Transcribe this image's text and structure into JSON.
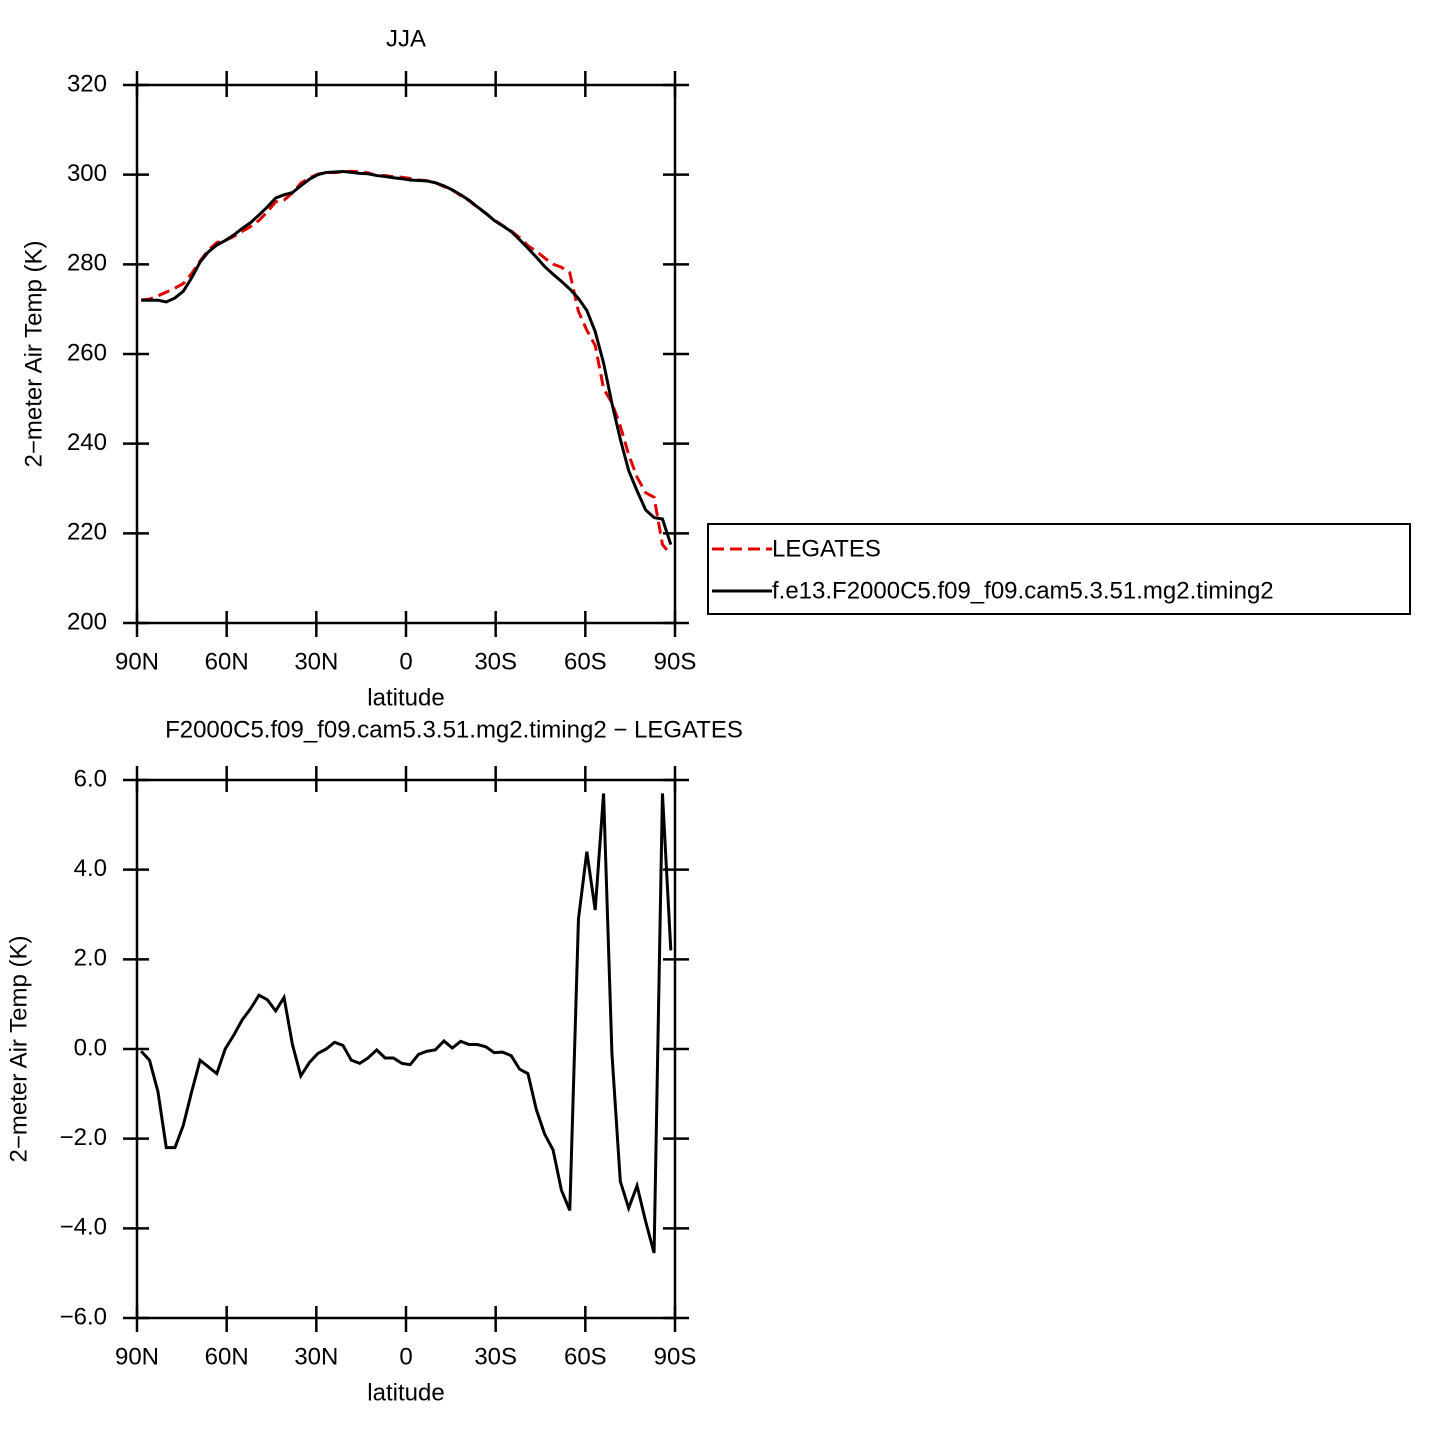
{
  "chart_data": [
    {
      "type": "line",
      "title": "JJA",
      "xlabel": "latitude",
      "ylabel": "2−meter Air Temp (K)",
      "x": [
        88.6,
        85.8,
        83.0,
        80.2,
        77.3,
        74.5,
        71.7,
        68.9,
        66.1,
        63.3,
        60.5,
        57.7,
        54.8,
        52.0,
        49.2,
        46.4,
        43.6,
        40.8,
        38.0,
        35.2,
        32.3,
        29.5,
        26.7,
        23.9,
        21.1,
        18.3,
        15.5,
        12.7,
        9.8,
        7.0,
        4.2,
        1.4,
        -1.4,
        -4.2,
        -7.0,
        -9.8,
        -12.7,
        -15.5,
        -18.3,
        -21.1,
        -23.9,
        -26.7,
        -29.5,
        -32.3,
        -35.2,
        -38.0,
        -40.8,
        -43.6,
        -46.4,
        -49.2,
        -52.0,
        -54.8,
        -57.7,
        -60.5,
        -63.3,
        -66.1,
        -68.9,
        -71.7,
        -74.5,
        -77.3,
        -80.2,
        -83.0,
        -85.8,
        -88.6
      ],
      "series": [
        {
          "name": "LEGATES",
          "color": "#e00000",
          "linestyle": "dashed",
          "values": [
            272.05,
            272.25,
            272.95,
            273.8,
            274.7,
            275.7,
            277.95,
            280.75,
            283.2,
            284.85,
            285.3,
            286.2,
            287.35,
            288.4,
            289.8,
            291.7,
            293.95,
            294.35,
            295.9,
            298.1,
            299.3,
            300.1,
            300.5,
            300.45,
            300.62,
            300.75,
            300.62,
            300.4,
            299.82,
            299.8,
            299.5,
            299.42,
            299.15,
            298.82,
            298.65,
            298.22,
            297.32,
            296.58,
            295.33,
            294.2,
            292.7,
            291.35,
            289.88,
            288.67,
            287.45,
            285.95,
            284.15,
            282.95,
            281.4,
            280.05,
            279.35,
            278.1,
            269.5,
            265.3,
            261.9,
            252.3,
            249.1,
            243.95,
            237.55,
            232.55,
            229.05,
            228.05,
            217.5,
            215.3
          ]
        },
        {
          "name": "f.e13.F2000C5.f09_f09.cam5.3.51.mg2.timing2",
          "color": "#000000",
          "linestyle": "solid",
          "values": [
            272.0,
            272.0,
            272.0,
            271.6,
            272.5,
            274.0,
            277.0,
            280.5,
            282.8,
            284.3,
            285.3,
            286.5,
            288.0,
            289.3,
            291.0,
            292.8,
            294.8,
            295.5,
            296.0,
            297.5,
            299.0,
            300.0,
            300.5,
            300.6,
            300.7,
            300.5,
            300.3,
            300.2,
            299.8,
            299.6,
            299.3,
            299.1,
            298.8,
            298.7,
            298.6,
            298.2,
            297.5,
            296.6,
            295.5,
            294.3,
            292.8,
            291.4,
            289.8,
            288.6,
            287.3,
            285.5,
            283.6,
            281.6,
            279.5,
            277.8,
            276.2,
            274.5,
            272.4,
            269.7,
            265.0,
            258.0,
            249.0,
            241.0,
            234.0,
            229.5,
            225.2,
            223.5,
            223.2,
            217.5
          ]
        }
      ],
      "xlim": [
        90,
        -90
      ],
      "xticks": [
        {
          "value": 90,
          "label": "90N"
        },
        {
          "value": 60,
          "label": "60N"
        },
        {
          "value": 30,
          "label": "30N"
        },
        0,
        {
          "value": -30,
          "label": "30S"
        },
        {
          "value": -60,
          "label": "60S"
        },
        {
          "value": -90,
          "label": "90S"
        }
      ],
      "ylim": [
        200,
        320
      ],
      "yticks": [
        200,
        220,
        240,
        260,
        280,
        300,
        320
      ],
      "legend": "outside-right"
    },
    {
      "type": "line",
      "title": "F2000C5.f09_f09.cam5.3.51.mg2.timing2 − LEGATES",
      "xlabel": "latitude",
      "ylabel": "2−meter Air Temp (K)",
      "x": [
        88.6,
        85.8,
        83.0,
        80.2,
        77.3,
        74.5,
        71.7,
        68.9,
        66.1,
        63.3,
        60.5,
        57.7,
        54.8,
        52.0,
        49.2,
        46.4,
        43.6,
        40.8,
        38.0,
        35.2,
        32.3,
        29.5,
        26.7,
        23.9,
        21.1,
        18.3,
        15.5,
        12.7,
        9.8,
        7.0,
        4.2,
        1.4,
        -1.4,
        -4.2,
        -7.0,
        -9.8,
        -12.7,
        -15.5,
        -18.3,
        -21.1,
        -23.9,
        -26.7,
        -29.5,
        -32.3,
        -35.2,
        -38.0,
        -40.8,
        -43.6,
        -46.4,
        -49.2,
        -52.0,
        -54.8,
        -57.7,
        -60.5,
        -63.3,
        -66.1,
        -68.9,
        -71.7,
        -74.5,
        -77.3,
        -80.2,
        -83.0,
        -85.8,
        -88.6
      ],
      "series": [
        {
          "color": "#000000",
          "linestyle": "solid",
          "values": [
            -0.05,
            -0.25,
            -0.95,
            -2.2,
            -2.2,
            -1.7,
            -0.95,
            -0.25,
            -0.4,
            -0.55,
            0.0,
            0.3,
            0.65,
            0.9,
            1.2,
            1.1,
            0.85,
            1.15,
            0.1,
            -0.6,
            -0.3,
            -0.1,
            0.0,
            0.15,
            0.08,
            -0.25,
            -0.32,
            -0.2,
            -0.02,
            -0.2,
            -0.2,
            -0.32,
            -0.35,
            -0.12,
            -0.05,
            -0.02,
            0.18,
            0.02,
            0.17,
            0.1,
            0.1,
            0.05,
            -0.08,
            -0.07,
            -0.15,
            -0.45,
            -0.55,
            -1.35,
            -1.9,
            -2.25,
            -3.15,
            -3.6,
            2.9,
            4.4,
            3.1,
            5.7,
            -0.1,
            -2.95,
            -3.55,
            -3.05,
            -3.85,
            -4.55,
            5.7,
            2.2
          ]
        }
      ],
      "xlim": [
        90,
        -90
      ],
      "xticks": [
        {
          "value": 90,
          "label": "90N"
        },
        {
          "value": 60,
          "label": "60N"
        },
        {
          "value": 30,
          "label": "30N"
        },
        0,
        {
          "value": -30,
          "label": "30S"
        },
        {
          "value": -60,
          "label": "60S"
        },
        {
          "value": -90,
          "label": "90S"
        }
      ],
      "ylim": [
        -6,
        6
      ],
      "yticks": [
        {
          "value": -6,
          "label": "−6.0"
        },
        {
          "value": -4,
          "label": "−4.0"
        },
        {
          "value": -2,
          "label": "−2.0"
        },
        {
          "value": 0,
          "label": "0.0"
        },
        {
          "value": 2,
          "label": "2.0"
        },
        {
          "value": 4,
          "label": "4.0"
        },
        {
          "value": 6,
          "label": "6.0"
        }
      ]
    }
  ]
}
